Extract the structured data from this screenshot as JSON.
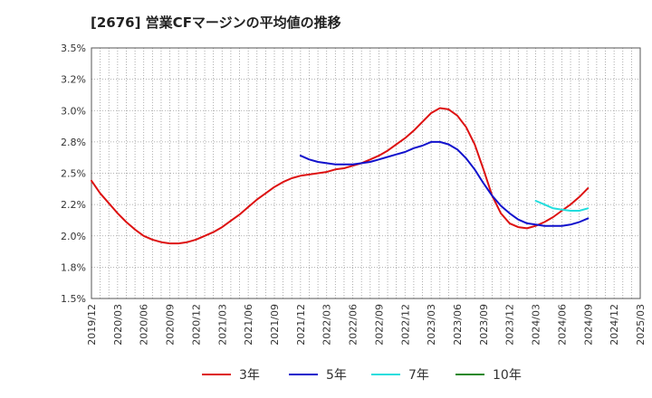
{
  "chart_data": {
    "type": "line",
    "title": "[2676]  営業CFマージンの平均値の推移",
    "xlabel": "",
    "ylabel": "",
    "ylim": [
      1.5,
      3.5
    ],
    "y_ticks": [
      "1.5%",
      "1.8%",
      "2.0%",
      "2.2%",
      "2.5%",
      "2.8%",
      "3.0%",
      "3.2%",
      "3.5%"
    ],
    "x_ticks": [
      "2019/12",
      "2020/03",
      "2020/06",
      "2020/09",
      "2020/12",
      "2021/03",
      "2021/06",
      "2021/09",
      "2021/12",
      "2022/03",
      "2022/06",
      "2022/09",
      "2022/12",
      "2023/03",
      "2023/06",
      "2023/09",
      "2023/12",
      "2024/03",
      "2024/06",
      "2024/09",
      "2024/12",
      "2025/03"
    ],
    "grid": true,
    "legend_position": "bottom",
    "series": [
      {
        "name": "3年",
        "color": "#dd1111",
        "points": [
          [
            "2019/12",
            2.44
          ],
          [
            "2020/01",
            2.34
          ],
          [
            "2020/02",
            2.26
          ],
          [
            "2020/03",
            2.18
          ],
          [
            "2020/04",
            2.11
          ],
          [
            "2020/05",
            2.05
          ],
          [
            "2020/06",
            2.0
          ],
          [
            "2020/07",
            1.97
          ],
          [
            "2020/08",
            1.95
          ],
          [
            "2020/09",
            1.94
          ],
          [
            "2020/10",
            1.94
          ],
          [
            "2020/11",
            1.95
          ],
          [
            "2020/12",
            1.97
          ],
          [
            "2021/01",
            2.0
          ],
          [
            "2021/02",
            2.03
          ],
          [
            "2021/03",
            2.07
          ],
          [
            "2021/04",
            2.12
          ],
          [
            "2021/05",
            2.17
          ],
          [
            "2021/06",
            2.23
          ],
          [
            "2021/07",
            2.29
          ],
          [
            "2021/08",
            2.34
          ],
          [
            "2021/09",
            2.39
          ],
          [
            "2021/10",
            2.43
          ],
          [
            "2021/11",
            2.46
          ],
          [
            "2021/12",
            2.48
          ],
          [
            "2022/01",
            2.49
          ],
          [
            "2022/02",
            2.5
          ],
          [
            "2022/03",
            2.51
          ],
          [
            "2022/04",
            2.53
          ],
          [
            "2022/05",
            2.54
          ],
          [
            "2022/06",
            2.56
          ],
          [
            "2022/07",
            2.58
          ],
          [
            "2022/08",
            2.61
          ],
          [
            "2022/09",
            2.64
          ],
          [
            "2022/10",
            2.68
          ],
          [
            "2022/11",
            2.73
          ],
          [
            "2022/12",
            2.78
          ],
          [
            "2023/01",
            2.84
          ],
          [
            "2023/02",
            2.91
          ],
          [
            "2023/03",
            2.98
          ],
          [
            "2023/04",
            3.02
          ],
          [
            "2023/05",
            3.01
          ],
          [
            "2023/06",
            2.96
          ],
          [
            "2023/07",
            2.87
          ],
          [
            "2023/08",
            2.73
          ],
          [
            "2023/09",
            2.53
          ],
          [
            "2023/10",
            2.32
          ],
          [
            "2023/11",
            2.18
          ],
          [
            "2023/12",
            2.1
          ],
          [
            "2024/01",
            2.07
          ],
          [
            "2024/02",
            2.06
          ],
          [
            "2024/03",
            2.08
          ],
          [
            "2024/04",
            2.11
          ],
          [
            "2024/05",
            2.15
          ],
          [
            "2024/06",
            2.2
          ],
          [
            "2024/07",
            2.25
          ],
          [
            "2024/08",
            2.31
          ],
          [
            "2024/09",
            2.38
          ]
        ]
      },
      {
        "name": "5年",
        "color": "#1111cc",
        "points": [
          [
            "2021/12",
            2.64
          ],
          [
            "2022/01",
            2.61
          ],
          [
            "2022/02",
            2.59
          ],
          [
            "2022/03",
            2.58
          ],
          [
            "2022/04",
            2.57
          ],
          [
            "2022/05",
            2.57
          ],
          [
            "2022/06",
            2.57
          ],
          [
            "2022/07",
            2.58
          ],
          [
            "2022/08",
            2.59
          ],
          [
            "2022/09",
            2.61
          ],
          [
            "2022/10",
            2.63
          ],
          [
            "2022/11",
            2.65
          ],
          [
            "2022/12",
            2.67
          ],
          [
            "2023/01",
            2.7
          ],
          [
            "2023/02",
            2.72
          ],
          [
            "2023/03",
            2.75
          ],
          [
            "2023/04",
            2.75
          ],
          [
            "2023/05",
            2.73
          ],
          [
            "2023/06",
            2.69
          ],
          [
            "2023/07",
            2.62
          ],
          [
            "2023/08",
            2.53
          ],
          [
            "2023/09",
            2.42
          ],
          [
            "2023/10",
            2.32
          ],
          [
            "2023/11",
            2.24
          ],
          [
            "2023/12",
            2.18
          ],
          [
            "2024/01",
            2.13
          ],
          [
            "2024/02",
            2.1
          ],
          [
            "2024/03",
            2.09
          ],
          [
            "2024/04",
            2.08
          ],
          [
            "2024/05",
            2.08
          ],
          [
            "2024/06",
            2.08
          ],
          [
            "2024/07",
            2.09
          ],
          [
            "2024/08",
            2.11
          ],
          [
            "2024/09",
            2.14
          ]
        ]
      },
      {
        "name": "7年",
        "color": "#22dddd",
        "points": [
          [
            "2024/03",
            2.28
          ],
          [
            "2024/04",
            2.25
          ],
          [
            "2024/05",
            2.22
          ],
          [
            "2024/06",
            2.21
          ],
          [
            "2024/07",
            2.2
          ],
          [
            "2024/08",
            2.2
          ],
          [
            "2024/09",
            2.22
          ]
        ]
      },
      {
        "name": "10年",
        "color": "#228822",
        "points": []
      }
    ]
  }
}
